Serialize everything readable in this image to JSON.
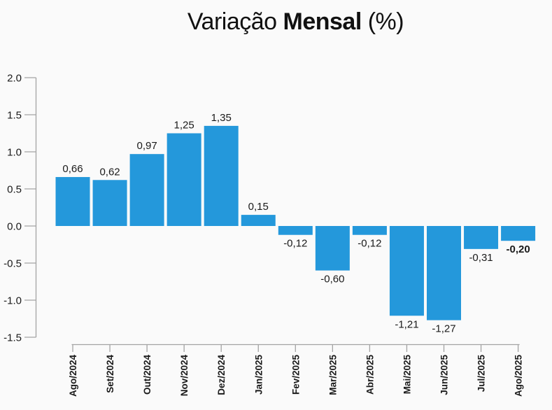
{
  "title": {
    "prefix": "Variação ",
    "bold": "Mensal",
    "suffix": " (%)"
  },
  "chart_data": {
    "type": "bar",
    "title": "Variação Mensal (%)",
    "categories": [
      "Ago/2024",
      "Set/2024",
      "Out/2024",
      "Nov/2024",
      "Dez/2024",
      "Jan/2025",
      "Fev/2025",
      "Mar/2025",
      "Abr/2025",
      "Mai/2025",
      "Jun/2025",
      "Jul/2025",
      "Ago/2025"
    ],
    "values": [
      0.66,
      0.62,
      0.97,
      1.25,
      1.35,
      0.15,
      -0.12,
      -0.6,
      -0.12,
      -1.21,
      -1.27,
      -0.31,
      -0.2
    ],
    "value_labels": [
      "0,66",
      "0,62",
      "0,97",
      "1,25",
      "1,35",
      "0,15",
      "-0,12",
      "-0,60",
      "-0,12",
      "-1,21",
      "-1,27",
      "-0,31",
      "-0,20"
    ],
    "bold_value_index": 12,
    "xlabel": "",
    "ylabel": "",
    "ylim": [
      -1.5,
      2.0
    ],
    "ytick_values": [
      2.0,
      1.5,
      1.0,
      0.5,
      0.0,
      -0.5,
      -1.0,
      -1.5
    ],
    "ytick_labels": [
      "2.0",
      "1.5",
      "1.0",
      "0.5",
      "0.0",
      "-0.5",
      "-1.0",
      "-1.5"
    ],
    "grid": false,
    "legend": "none",
    "x_axis_label_rotation_deg": -90,
    "colors": {
      "bar": "#2498db",
      "axis": "#a3a3a3",
      "text": "#1a1a1a",
      "title": "#111111",
      "background": "#fafafa"
    }
  }
}
